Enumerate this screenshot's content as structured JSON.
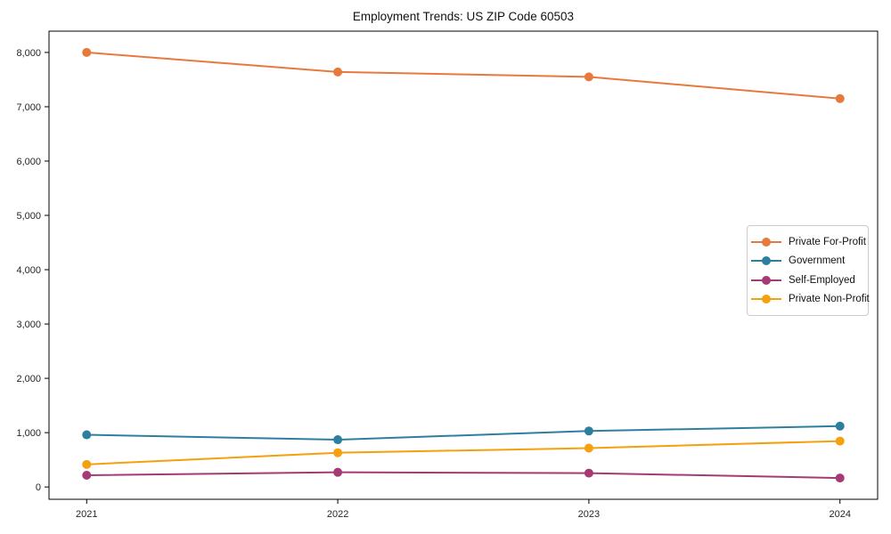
{
  "chart_data": {
    "type": "line",
    "title": "Employment Trends: US ZIP Code 60503",
    "x": [
      2021,
      2022,
      2023,
      2024
    ],
    "x_tick_labels": [
      "2021",
      "2022",
      "2023",
      "2024"
    ],
    "series": [
      {
        "name": "Private For-Profit",
        "color": "#e8793d",
        "values": [
          8000,
          7640,
          7550,
          7150
        ]
      },
      {
        "name": "Government",
        "color": "#2e7f9e",
        "values": [
          960,
          870,
          1030,
          1120
        ]
      },
      {
        "name": "Self-Employed",
        "color": "#a53a74",
        "values": [
          215,
          270,
          255,
          165
        ]
      },
      {
        "name": "Private Non-Profit",
        "color": "#f5a00e",
        "values": [
          415,
          630,
          715,
          845
        ]
      }
    ],
    "y_ticks": [
      0,
      1000,
      2000,
      3000,
      4000,
      5000,
      6000,
      7000,
      8000
    ],
    "y_tick_labels": [
      "0",
      "1,000",
      "2,000",
      "3,000",
      "4,000",
      "5,000",
      "6,000",
      "7,000",
      "8,000"
    ],
    "xlim": [
      2020.85,
      2024.15
    ],
    "ylim": [
      -227,
      8392
    ],
    "grid": false,
    "legend_position": "center-right",
    "marker": "circle",
    "background_color": "#ffffff",
    "axis_color": "#000000"
  }
}
